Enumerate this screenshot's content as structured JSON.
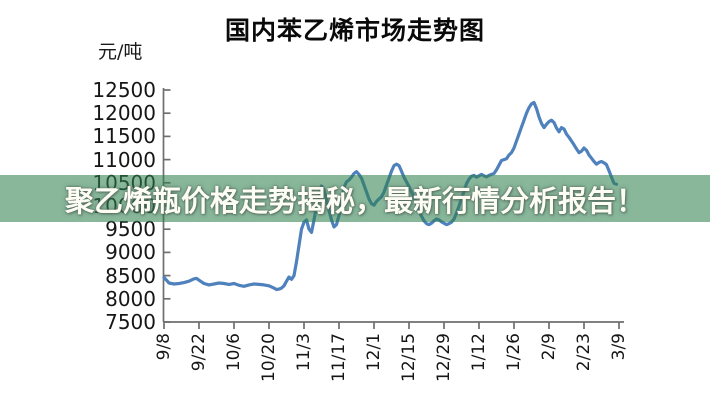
{
  "title": "国内苯乙烯市场走势图",
  "banner": {
    "text": "聚乙烯瓶价格走势揭秘，最新行情分析报告！",
    "bg_color": "rgba(45,129,77,0.57)",
    "text_color": "#fdfdf4"
  },
  "chart_data": {
    "type": "line",
    "title": "国内苯乙烯市场走势图",
    "y_unit": "元/吨",
    "ylim": [
      7500,
      12500
    ],
    "y_ticks": [
      12500,
      12000,
      11500,
      11000,
      10500,
      10000,
      9500,
      9000,
      8500,
      8000,
      7500
    ],
    "x_tick_labels": [
      "9/8",
      "9/22",
      "10/6",
      "10/20",
      "11/3",
      "11/17",
      "12/1",
      "12/15",
      "12/29",
      "1/12",
      "1/26",
      "2/9",
      "2/23",
      "3/9"
    ],
    "x_days_per_tick": 14,
    "grid": false,
    "legend": "none",
    "line_color": "#4f81bd",
    "axis_color": "#6f6f6f",
    "points_day_value": [
      [
        0,
        8460
      ],
      [
        1,
        8400
      ],
      [
        2,
        8340
      ],
      [
        4,
        8320
      ],
      [
        6,
        8330
      ],
      [
        8,
        8350
      ],
      [
        10,
        8380
      ],
      [
        12,
        8430
      ],
      [
        13,
        8440
      ],
      [
        14,
        8400
      ],
      [
        16,
        8330
      ],
      [
        18,
        8300
      ],
      [
        20,
        8320
      ],
      [
        22,
        8340
      ],
      [
        24,
        8330
      ],
      [
        26,
        8310
      ],
      [
        28,
        8330
      ],
      [
        30,
        8290
      ],
      [
        32,
        8270
      ],
      [
        34,
        8300
      ],
      [
        36,
        8320
      ],
      [
        38,
        8310
      ],
      [
        40,
        8300
      ],
      [
        42,
        8280
      ],
      [
        44,
        8230
      ],
      [
        45,
        8200
      ],
      [
        46,
        8210
      ],
      [
        47,
        8230
      ],
      [
        48,
        8280
      ],
      [
        49,
        8380
      ],
      [
        50,
        8470
      ],
      [
        51,
        8420
      ],
      [
        52,
        8500
      ],
      [
        53,
        8800
      ],
      [
        54,
        9150
      ],
      [
        55,
        9500
      ],
      [
        56,
        9650
      ],
      [
        57,
        9700
      ],
      [
        58,
        9500
      ],
      [
        59,
        9430
      ],
      [
        60,
        9700
      ],
      [
        61,
        10000
      ],
      [
        62,
        10250
      ],
      [
        63,
        10430
      ],
      [
        64,
        10350
      ],
      [
        65,
        10150
      ],
      [
        66,
        9900
      ],
      [
        67,
        9700
      ],
      [
        68,
        9550
      ],
      [
        69,
        9600
      ],
      [
        70,
        9800
      ],
      [
        71,
        10100
      ],
      [
        72,
        10400
      ],
      [
        73,
        10520
      ],
      [
        74,
        10560
      ],
      [
        75,
        10620
      ],
      [
        76,
        10700
      ],
      [
        77,
        10740
      ],
      [
        78,
        10680
      ],
      [
        79,
        10600
      ],
      [
        80,
        10450
      ],
      [
        81,
        10300
      ],
      [
        82,
        10150
      ],
      [
        83,
        10050
      ],
      [
        84,
        10020
      ],
      [
        85,
        10100
      ],
      [
        86,
        10150
      ],
      [
        87,
        10200
      ],
      [
        88,
        10300
      ],
      [
        89,
        10450
      ],
      [
        90,
        10600
      ],
      [
        91,
        10750
      ],
      [
        92,
        10870
      ],
      [
        93,
        10900
      ],
      [
        94,
        10870
      ],
      [
        95,
        10750
      ],
      [
        96,
        10620
      ],
      [
        97,
        10520
      ],
      [
        98,
        10420
      ],
      [
        99,
        10300
      ],
      [
        100,
        10200
      ],
      [
        101,
        10050
      ],
      [
        102,
        9900
      ],
      [
        103,
        9780
      ],
      [
        104,
        9680
      ],
      [
        105,
        9620
      ],
      [
        106,
        9600
      ],
      [
        107,
        9630
      ],
      [
        108,
        9680
      ],
      [
        109,
        9720
      ],
      [
        110,
        9700
      ],
      [
        111,
        9660
      ],
      [
        112,
        9630
      ],
      [
        113,
        9600
      ],
      [
        114,
        9620
      ],
      [
        115,
        9650
      ],
      [
        116,
        9720
      ],
      [
        117,
        9850
      ],
      [
        118,
        10000
      ],
      [
        119,
        10150
      ],
      [
        120,
        10320
      ],
      [
        121,
        10480
      ],
      [
        122,
        10580
      ],
      [
        123,
        10640
      ],
      [
        124,
        10660
      ],
      [
        125,
        10620
      ],
      [
        126,
        10650
      ],
      [
        127,
        10680
      ],
      [
        128,
        10650
      ],
      [
        129,
        10630
      ],
      [
        130,
        10660
      ],
      [
        131,
        10680
      ],
      [
        132,
        10700
      ],
      [
        133,
        10780
      ],
      [
        134,
        10880
      ],
      [
        135,
        10980
      ],
      [
        136,
        11000
      ],
      [
        137,
        11020
      ],
      [
        138,
        11100
      ],
      [
        139,
        11150
      ],
      [
        140,
        11250
      ],
      [
        141,
        11400
      ],
      [
        142,
        11550
      ],
      [
        143,
        11700
      ],
      [
        144,
        11850
      ],
      [
        145,
        12000
      ],
      [
        146,
        12120
      ],
      [
        147,
        12200
      ],
      [
        148,
        12230
      ],
      [
        149,
        12100
      ],
      [
        150,
        11920
      ],
      [
        151,
        11780
      ],
      [
        152,
        11690
      ],
      [
        153,
        11760
      ],
      [
        154,
        11820
      ],
      [
        155,
        11850
      ],
      [
        156,
        11800
      ],
      [
        157,
        11680
      ],
      [
        158,
        11600
      ],
      [
        159,
        11690
      ],
      [
        160,
        11660
      ],
      [
        161,
        11550
      ],
      [
        162,
        11480
      ],
      [
        163,
        11400
      ],
      [
        164,
        11320
      ],
      [
        165,
        11230
      ],
      [
        166,
        11150
      ],
      [
        167,
        11180
      ],
      [
        168,
        11250
      ],
      [
        169,
        11200
      ],
      [
        170,
        11100
      ],
      [
        171,
        11030
      ],
      [
        172,
        10960
      ],
      [
        173,
        10900
      ],
      [
        174,
        10940
      ],
      [
        175,
        10960
      ],
      [
        176,
        10930
      ],
      [
        177,
        10890
      ],
      [
        178,
        10760
      ],
      [
        179,
        10620
      ],
      [
        180,
        10490
      ],
      [
        181,
        10470
      ]
    ]
  }
}
